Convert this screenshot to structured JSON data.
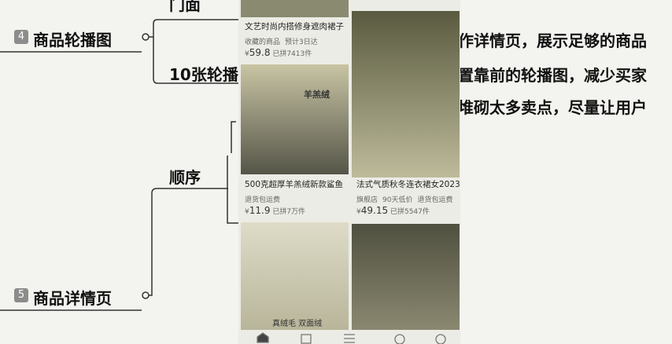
{
  "mindmap": {
    "nodes": [
      {
        "badge": "4",
        "label": "商品轮播图"
      },
      {
        "badge": "5",
        "label": "商品详情页"
      }
    ],
    "branches": [
      "门面",
      "10张轮播",
      "顺序"
    ],
    "notes": [
      "作详情页，展示足够的商品",
      "置靠前的轮播图，减少买家",
      "堆砌太多卖点，尽量让用户"
    ]
  },
  "phone": {
    "cards": [
      {
        "title": "文艺时尚内搭修身遮肉裙子",
        "tags": [
          "收藏的商品",
          "预计3日达"
        ],
        "currency": "¥",
        "price": "59.8",
        "sold": "已拼7413件"
      },
      {
        "title": "500克超厚羊羔绒新款鲨鱼",
        "tags": [
          "退货包运费"
        ],
        "currency": "¥",
        "price": "11.9",
        "sold": "已拼7万件"
      },
      {
        "title": "法式气质秋冬连衣裙女2023",
        "tags": [
          "旗舰店",
          "90天低价",
          "退货包运费"
        ],
        "currency": "¥",
        "price": "49.15",
        "sold": "已拼5547件"
      }
    ],
    "image_texts": [
      "羊羔绒",
      "真绒毛 双面绒"
    ]
  }
}
